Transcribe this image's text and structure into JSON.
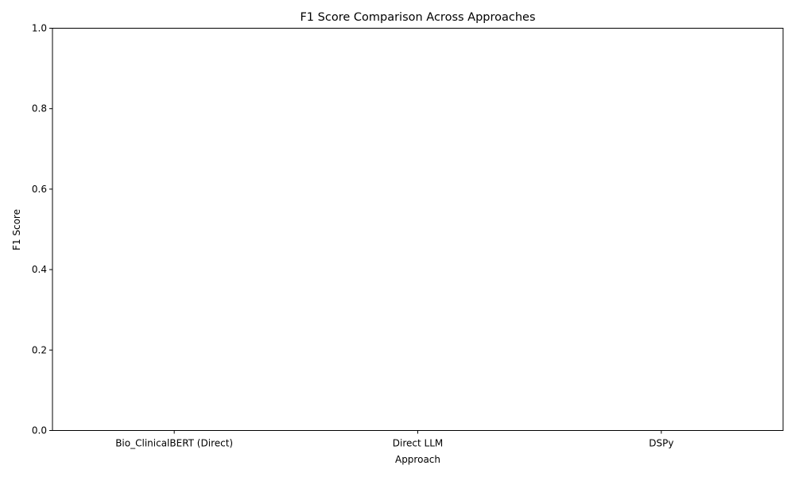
{
  "chart_data": {
    "type": "bar",
    "title": "F1 Score Comparison Across Approaches",
    "xlabel": "Approach",
    "ylabel": "F1 Score",
    "categories": [
      "Bio_ClinicalBERT (Direct)",
      "Direct LLM",
      "DSPy"
    ],
    "values": [
      0,
      0,
      0
    ],
    "ylim": [
      0,
      1
    ],
    "yticks": [
      "0.0",
      "0.2",
      "0.4",
      "0.6",
      "0.8",
      "1.0"
    ],
    "grid": false,
    "legend": "none",
    "colors": {
      "axes": "#000000",
      "background": "#ffffff"
    }
  }
}
